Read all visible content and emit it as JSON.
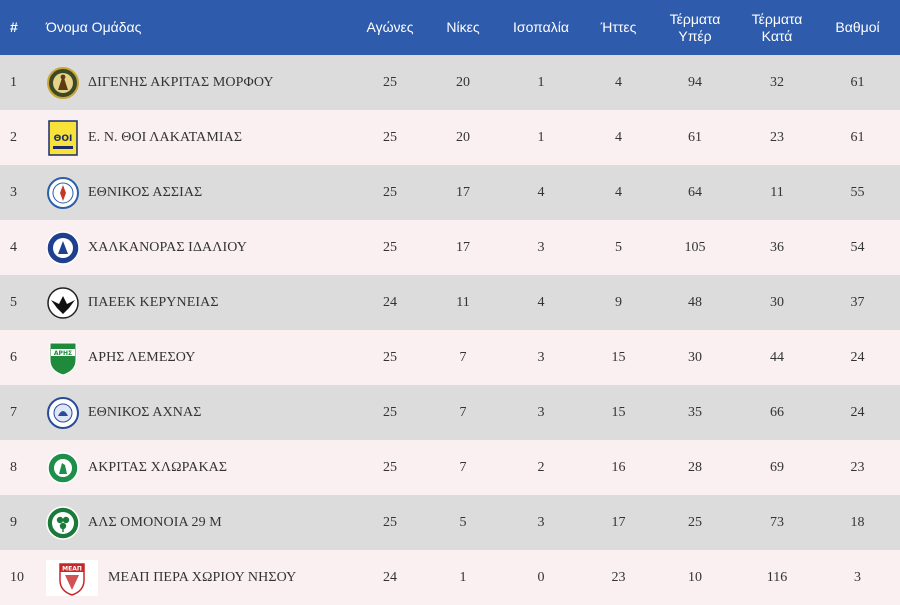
{
  "headers": {
    "pos": "#",
    "team": "Όνομα Ομάδας",
    "played": "Αγώνες",
    "wins": "Νίκες",
    "draws": "Ισοπαλία",
    "losses": "Ήττες",
    "gf_line1": "Τέρματα",
    "gf_line2": "Υπέρ",
    "ga_line1": "Τέρματα",
    "ga_line2": "Κατά",
    "points": "Βαθμοί"
  },
  "colors": {
    "header_bg": "#2e5bab",
    "row_odd": "#dcdcdc",
    "row_even": "#faf0f1"
  },
  "rows": [
    {
      "pos": "1",
      "team": "ΔΙΓΕΝΗΣ ΑΚΡΙΤΑΣ ΜΟΡΦΟΥ",
      "played": "25",
      "wins": "20",
      "draws": "1",
      "losses": "4",
      "gf": "94",
      "ga": "32",
      "points": "61",
      "logo": "digenis-crest-icon"
    },
    {
      "pos": "2",
      "team": "Ε. Ν. ΘΟΙ ΛΑΚΑΤΑΜΙΑΣ",
      "played": "25",
      "wins": "20",
      "draws": "1",
      "losses": "4",
      "gf": "61",
      "ga": "23",
      "points": "61",
      "logo": "thoi-crest-icon",
      "logo_text": "ΘΟΙ"
    },
    {
      "pos": "3",
      "team": "ΕΘΝΙΚΟΣ ΑΣΣΙΑΣ",
      "played": "25",
      "wins": "17",
      "draws": "4",
      "losses": "4",
      "gf": "64",
      "ga": "11",
      "points": "55",
      "logo": "ethnikos-assias-crest-icon"
    },
    {
      "pos": "4",
      "team": "ΧΑΛΚΑΝΟΡΑΣ ΙΔΑΛΙΟΥ",
      "played": "25",
      "wins": "17",
      "draws": "3",
      "losses": "5",
      "gf": "105",
      "ga": "36",
      "points": "54",
      "logo": "chalkanoras-crest-icon"
    },
    {
      "pos": "5",
      "team": "ΠΑΕΕΚ ΚΕΡΥΝΕΙΑΣ",
      "played": "24",
      "wins": "11",
      "draws": "4",
      "losses": "9",
      "gf": "48",
      "ga": "30",
      "points": "37",
      "logo": "paeek-eagle-crest-icon"
    },
    {
      "pos": "6",
      "team": "ΑΡΗΣ ΛΕΜΕΣΟΥ",
      "played": "25",
      "wins": "7",
      "draws": "3",
      "losses": "15",
      "gf": "30",
      "ga": "44",
      "points": "24",
      "logo": "aris-crest-icon",
      "logo_text": "ΑΡΗΣ"
    },
    {
      "pos": "7",
      "team": "ΕΘΝΙΚΟΣ ΑΧΝΑΣ",
      "played": "25",
      "wins": "7",
      "draws": "3",
      "losses": "15",
      "gf": "35",
      "ga": "66",
      "points": "24",
      "logo": "ethnikos-achnas-crest-icon"
    },
    {
      "pos": "8",
      "team": "ΑΚΡΙΤΑΣ ΧΛΩΡΑΚΑΣ",
      "played": "25",
      "wins": "7",
      "draws": "2",
      "losses": "16",
      "gf": "28",
      "ga": "69",
      "points": "23",
      "logo": "akritas-crest-icon"
    },
    {
      "pos": "9",
      "team": "ΑΛΣ ΟΜΟΝΟΙΑ 29 Μ",
      "played": "25",
      "wins": "5",
      "draws": "3",
      "losses": "17",
      "gf": "25",
      "ga": "73",
      "points": "18",
      "logo": "omonoia-clover-crest-icon"
    },
    {
      "pos": "10",
      "team": "ΜΕΑΠ ΠΕΡΑ ΧΩΡΙΟΥ ΝΗΣΟΥ",
      "played": "24",
      "wins": "1",
      "draws": "0",
      "losses": "23",
      "gf": "10",
      "ga": "116",
      "points": "3",
      "logo": "meap-crest-icon",
      "logo_text": "ΜΕΑΠ"
    }
  ]
}
